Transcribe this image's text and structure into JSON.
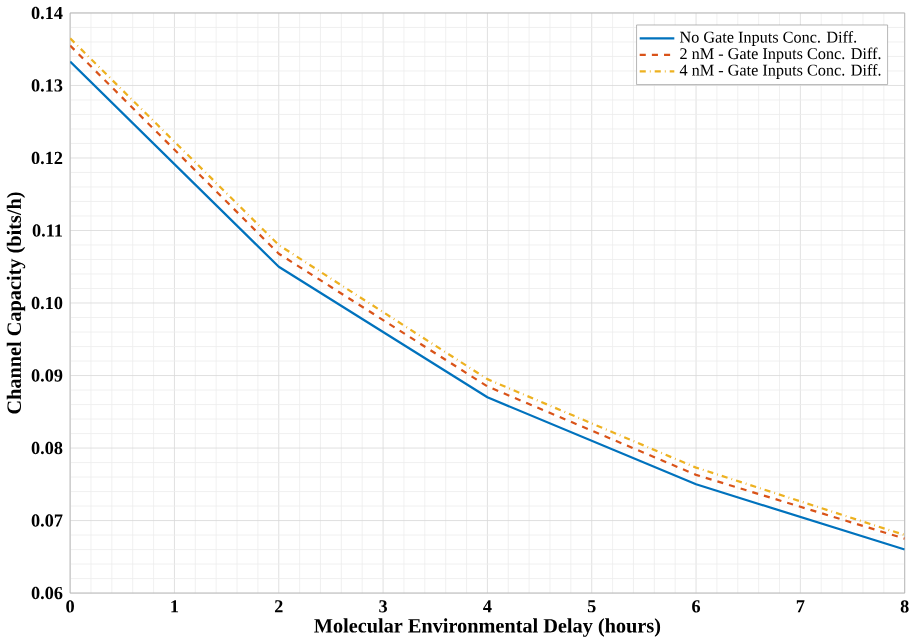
{
  "chart_data": {
    "type": "line",
    "xlabel": "Molecular Environmental Delay (hours)",
    "ylabel": "Channel Capacity (bits/h)",
    "x": [
      0,
      2,
      4,
      6,
      8
    ],
    "series": [
      {
        "name": "No Gate Inputs Conc. Diff.",
        "color": "#0072bd",
        "line_style": "solid",
        "values": [
          0.1333,
          0.105,
          0.087,
          0.075,
          0.066
        ]
      },
      {
        "name": "2 nM - Gate Inputs Conc. Diff.",
        "color": "#d95319",
        "line_style": "dashed",
        "values": [
          0.1355,
          0.1068,
          0.0885,
          0.0763,
          0.0675
        ]
      },
      {
        "name": "4 nM - Gate Inputs Conc. Diff.",
        "color": "#edb120",
        "line_style": "dashdot",
        "values": [
          0.1365,
          0.108,
          0.0895,
          0.0773,
          0.068
        ]
      }
    ],
    "xlim": [
      0,
      8
    ],
    "xticks": [
      0,
      1,
      2,
      3,
      4,
      5,
      6,
      7,
      8
    ],
    "ylim": [
      0.06,
      0.14
    ],
    "yticks": [
      {
        "value": 0.06,
        "label": "0.06"
      },
      {
        "value": 0.07,
        "label": "0.07"
      },
      {
        "value": 0.08,
        "label": "0.08"
      },
      {
        "value": 0.09,
        "label": "0.09"
      },
      {
        "value": 0.1,
        "label": "0.10"
      },
      {
        "value": 0.11,
        "label": "0.11"
      },
      {
        "value": 0.12,
        "label": "0.12"
      },
      {
        "value": 0.13,
        "label": "0.13"
      },
      {
        "value": 0.14,
        "label": "0.14"
      }
    ],
    "grid": true,
    "legend": "top right",
    "marker": "none"
  }
}
